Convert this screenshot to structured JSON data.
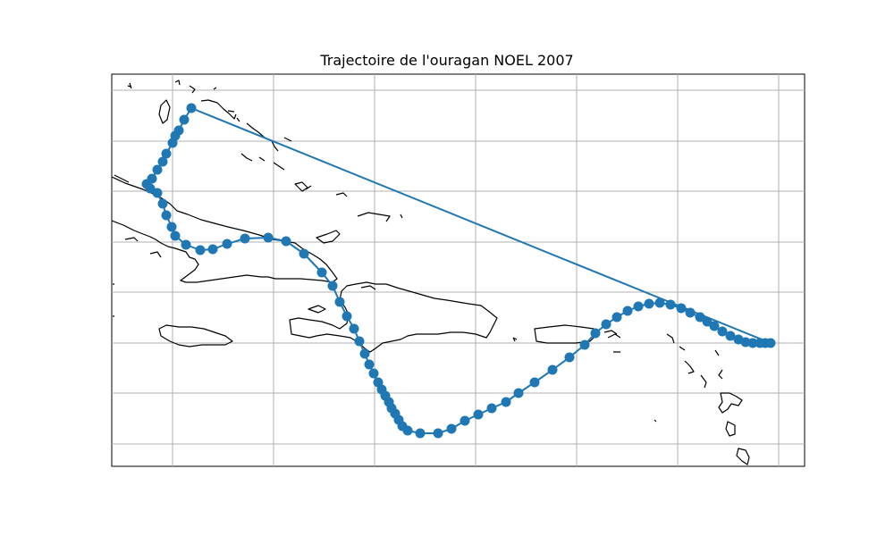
{
  "title": "Trajectoire de l'ouragan NOEL 2007",
  "colors": {
    "track": "#1f77b4",
    "coast": "#000000",
    "grid": "#b0b0b0"
  },
  "track": {
    "name": "NOEL",
    "year": 2007,
    "points_count": 62
  }
}
